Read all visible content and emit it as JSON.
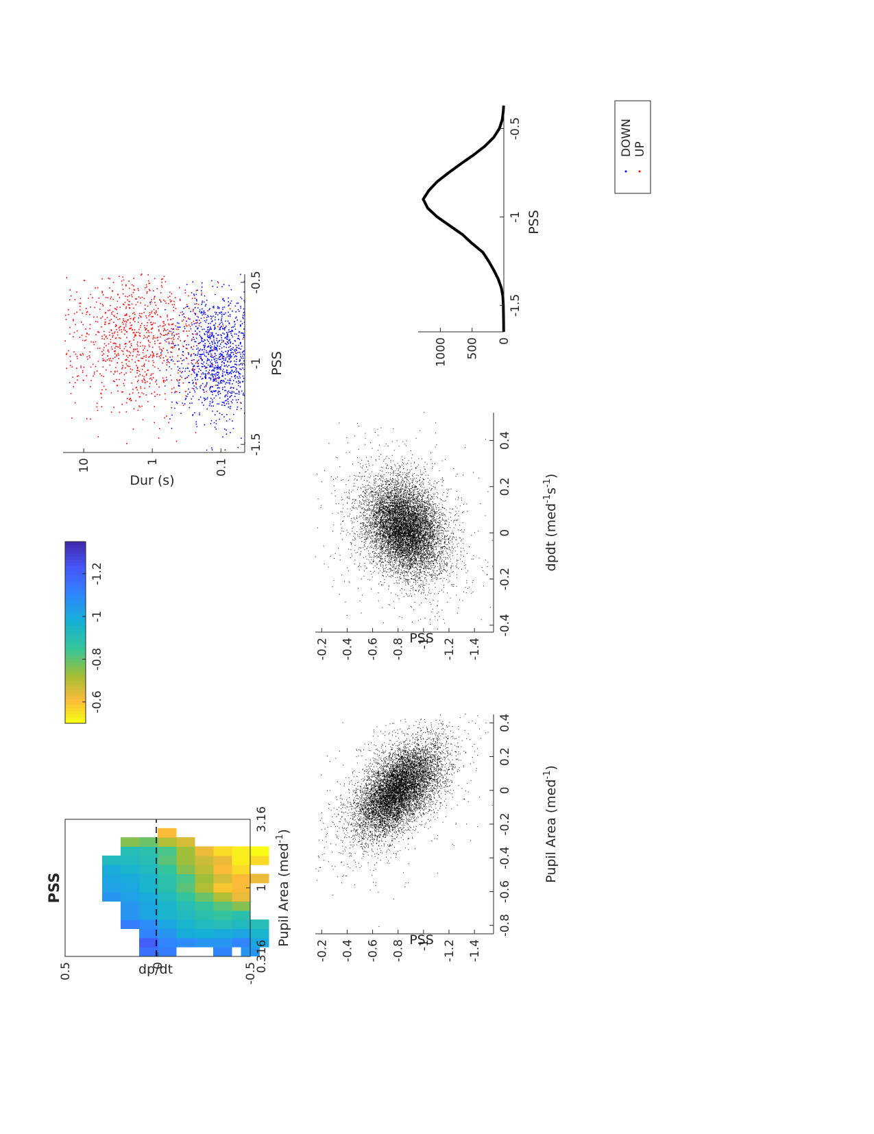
{
  "figure": {
    "orientation": "rotated-90-ccw"
  },
  "colors": {
    "up": "#ff0000",
    "down": "#0000ff",
    "black": "#000000",
    "axis": "#262626"
  },
  "chart_data": [
    {
      "id": "heatmap",
      "type": "heatmap",
      "title": "PSS",
      "xlabel": "Pupil Area (med",
      "xlabel_sup": "-1",
      "xlabel_close": ")",
      "ylabel": "dp/dt",
      "x_scale": "log",
      "xlim": [
        0.316,
        3.16
      ],
      "ylim": [
        -0.5,
        0.5
      ],
      "x_ticks": [
        0.316,
        1,
        3.16
      ],
      "x_tick_labels": [
        "0.316",
        "1",
        "3.16"
      ],
      "y_ticks": [
        -0.5,
        0,
        0.5
      ],
      "y_tick_labels": [
        "-0.5",
        "0",
        "0.5"
      ],
      "zero_line": "dashed",
      "colorbar": {
        "colormap": "parula",
        "range": [
          -1.35,
          -0.5
        ],
        "ticks": [
          -0.6,
          -0.8,
          -1,
          -1.2
        ],
        "tick_labels": [
          "-0.6",
          "-0.8",
          "-1",
          "-1.2"
        ]
      },
      "n_bins_x": 15,
      "n_bins_y": 10,
      "cells": [
        [
          0,
          [
            -0.5,
            -1.05
          ],
          [
            -0.35,
            -1.1
          ],
          [
            -0.05,
            -1.12
          ],
          [
            0.05,
            -1.15
          ]
        ],
        [
          1,
          [
            -0.55,
            -1.0
          ],
          [
            -0.45,
            -1.1
          ],
          [
            -0.35,
            -1.05
          ],
          [
            -0.25,
            -1.05
          ],
          [
            -0.15,
            -1.08
          ],
          [
            -0.05,
            -1.1
          ],
          [
            0.05,
            -1.2
          ]
        ],
        [
          2,
          [
            -0.55,
            -0.95
          ],
          [
            -0.45,
            -1.0
          ],
          [
            -0.35,
            -0.98
          ],
          [
            -0.25,
            -0.97
          ],
          [
            -0.15,
            -0.98
          ],
          [
            -0.05,
            -1.05
          ],
          [
            0.05,
            -1.1
          ]
        ],
        [
          3,
          [
            -0.55,
            -0.9
          ],
          [
            -0.45,
            -0.92
          ],
          [
            -0.35,
            -0.9
          ],
          [
            -0.25,
            -0.92
          ],
          [
            -0.15,
            -0.95
          ],
          [
            -0.05,
            -1.0
          ],
          [
            0.05,
            -1.08
          ],
          [
            0.15,
            -1.12
          ]
        ],
        [
          4,
          [
            -0.45,
            -0.88
          ],
          [
            -0.35,
            -0.85
          ],
          [
            -0.25,
            -0.88
          ],
          [
            -0.15,
            -0.92
          ],
          [
            -0.05,
            -0.95
          ],
          [
            0.05,
            -1.0
          ],
          [
            0.15,
            -1.05
          ]
        ],
        [
          5,
          [
            -0.45,
            -0.75
          ],
          [
            -0.35,
            -0.8
          ],
          [
            -0.25,
            -0.85
          ],
          [
            -0.15,
            -0.9
          ],
          [
            -0.05,
            -0.95
          ],
          [
            0.05,
            -1.0
          ],
          [
            0.15,
            -1.05
          ]
        ],
        [
          6,
          [
            -0.45,
            -0.62
          ],
          [
            -0.35,
            -0.7
          ],
          [
            -0.25,
            -0.78
          ],
          [
            -0.15,
            -0.85
          ],
          [
            -0.05,
            -0.92
          ],
          [
            0.05,
            -0.98
          ],
          [
            0.15,
            -1.02
          ],
          [
            0.25,
            -1.05
          ]
        ],
        [
          7,
          [
            -0.45,
            -0.6
          ],
          [
            -0.35,
            -0.58
          ],
          [
            -0.25,
            -0.7
          ],
          [
            -0.15,
            -0.8
          ],
          [
            -0.05,
            -0.88
          ],
          [
            0.05,
            -0.95
          ],
          [
            0.15,
            -1.0
          ],
          [
            0.25,
            -1.02
          ]
        ],
        [
          8,
          [
            -0.55,
            -0.62
          ],
          [
            -0.45,
            -0.6
          ],
          [
            -0.35,
            -0.65
          ],
          [
            -0.25,
            -0.72
          ],
          [
            -0.15,
            -0.82
          ],
          [
            -0.05,
            -0.88
          ],
          [
            0.05,
            -0.95
          ],
          [
            0.15,
            -0.98
          ],
          [
            0.25,
            -1.0
          ]
        ],
        [
          9,
          [
            -0.45,
            -0.55
          ],
          [
            -0.35,
            -0.6
          ],
          [
            -0.25,
            -0.68
          ],
          [
            -0.15,
            -0.75
          ],
          [
            -0.05,
            -0.85
          ],
          [
            0.05,
            -0.92
          ],
          [
            0.15,
            -0.95
          ],
          [
            0.25,
            -0.98
          ]
        ],
        [
          10,
          [
            -0.55,
            -0.55
          ],
          [
            -0.45,
            -0.52
          ],
          [
            -0.35,
            -0.62
          ],
          [
            -0.25,
            -0.66
          ],
          [
            -0.15,
            -0.72
          ],
          [
            -0.05,
            -0.8
          ],
          [
            0.05,
            -0.9
          ],
          [
            0.15,
            -0.92
          ],
          [
            0.25,
            -0.92
          ]
        ],
        [
          11,
          [
            -0.55,
            -0.5
          ],
          [
            -0.45,
            -0.52
          ],
          [
            -0.35,
            -0.55
          ],
          [
            -0.25,
            -0.62
          ],
          [
            -0.15,
            -0.72
          ],
          [
            -0.05,
            -0.82
          ],
          [
            0.05,
            -0.88
          ],
          [
            0.15,
            -0.9
          ]
        ],
        [
          12,
          [
            -0.15,
            -0.65
          ],
          [
            -0.05,
            -0.7
          ],
          [
            0.05,
            -0.78
          ],
          [
            0.15,
            -0.75
          ]
        ],
        [
          13,
          [
            -0.05,
            -0.6
          ]
        ]
      ]
    },
    {
      "id": "updown",
      "type": "scatter",
      "xlabel": "PSS",
      "ylabel": "Dur (s)",
      "y_scale": "log",
      "xlim": [
        -1.55,
        -0.45
      ],
      "ylim": [
        0.045,
        20
      ],
      "x_ticks": [
        -1.5,
        -1,
        -0.5
      ],
      "x_tick_labels": [
        "-1.5",
        "-1",
        "-0.5"
      ],
      "y_ticks": [
        0.1,
        1,
        10
      ],
      "y_tick_labels": [
        "0.1",
        "1",
        "10"
      ],
      "legend": {
        "placement": "top-right",
        "entries": [
          "DOWN",
          "UP"
        ]
      },
      "series": [
        {
          "name": "DOWN",
          "n_points": 1200,
          "center": [
            -0.95,
            0.11
          ],
          "spread": [
            0.2,
            0.33
          ]
        },
        {
          "name": "UP",
          "n_points": 1000,
          "center": [
            -0.85,
            1.5
          ],
          "spread": [
            0.22,
            0.5
          ]
        }
      ]
    },
    {
      "id": "hist",
      "type": "line",
      "xlabel": "PSS",
      "ylabel": "",
      "xlim": [
        -1.65,
        -0.37
      ],
      "ylim": [
        0,
        1350
      ],
      "x_ticks": [
        -1.5,
        -1,
        -0.5
      ],
      "x_tick_labels": [
        "-1.5",
        "-1",
        "-0.5"
      ],
      "y_ticks": [
        0,
        500,
        1000
      ],
      "y_tick_labels": [
        "0",
        "500",
        "1000"
      ],
      "x": [
        -1.65,
        -1.6,
        -1.55,
        -1.5,
        -1.45,
        -1.4,
        -1.35,
        -1.3,
        -1.25,
        -1.2,
        -1.15,
        -1.1,
        -1.05,
        -1.0,
        -0.95,
        -0.9,
        -0.85,
        -0.8,
        -0.75,
        -0.7,
        -0.65,
        -0.6,
        -0.55,
        -0.5,
        -0.45,
        -0.4,
        -0.37
      ],
      "values": [
        2,
        3,
        5,
        8,
        15,
        40,
        90,
        160,
        240,
        330,
        500,
        650,
        850,
        1050,
        1200,
        1270,
        1180,
        1050,
        870,
        680,
        480,
        300,
        160,
        70,
        25,
        8,
        3
      ]
    },
    {
      "id": "pss_area",
      "type": "scatter",
      "xlabel": "Pupil Area (med",
      "xlabel_sup": "-1",
      "xlabel_close": ")",
      "ylabel": "PSS",
      "xlim": [
        -0.85,
        0.45
      ],
      "ylim": [
        -1.55,
        -0.15
      ],
      "x_ticks": [
        -0.8,
        -0.6,
        -0.4,
        -0.2,
        0,
        0.2,
        0.4
      ],
      "x_tick_labels": [
        "-0.8",
        "-0.6",
        "-0.4",
        "-0.2",
        "0",
        "0.2",
        "0.4"
      ],
      "y_ticks": [
        -1.4,
        -1.2,
        -1,
        -0.8,
        -0.6,
        -0.4,
        -0.2
      ],
      "y_tick_labels": [
        "-1.4",
        "-1.2",
        "-1",
        "-0.8",
        "-0.6",
        "-0.4",
        "-0.2"
      ],
      "series": [
        {
          "n_points": 9000,
          "center": [
            0.0,
            -0.8
          ],
          "spread": [
            0.13,
            0.16
          ],
          "correlation": -0.55
        }
      ]
    },
    {
      "id": "pss_dpdt",
      "type": "scatter",
      "xlabel": "dpdt (med",
      "xlabel_sup": "-1",
      "xlabel_mid": "s",
      "xlabel_sup2": "-1",
      "xlabel_close": ")",
      "ylabel": "PSS",
      "xlim": [
        -0.43,
        0.52
      ],
      "ylim": [
        -1.55,
        -0.15
      ],
      "x_ticks": [
        -0.4,
        -0.2,
        0,
        0.2,
        0.4
      ],
      "x_tick_labels": [
        "-0.4",
        "-0.2",
        "0",
        "0.2",
        "0.4"
      ],
      "y_ticks": [
        -1.4,
        -1.2,
        -1,
        -0.8,
        -0.6,
        -0.4,
        -0.2
      ],
      "y_tick_labels": [
        "-1.4",
        "-1.2",
        "-1",
        "-0.8",
        "-0.6",
        "-0.4",
        "-0.2"
      ],
      "series": [
        {
          "n_points": 9000,
          "center": [
            0.02,
            -0.85
          ],
          "spread": [
            0.1,
            0.15
          ],
          "correlation": 0.25
        }
      ]
    }
  ]
}
